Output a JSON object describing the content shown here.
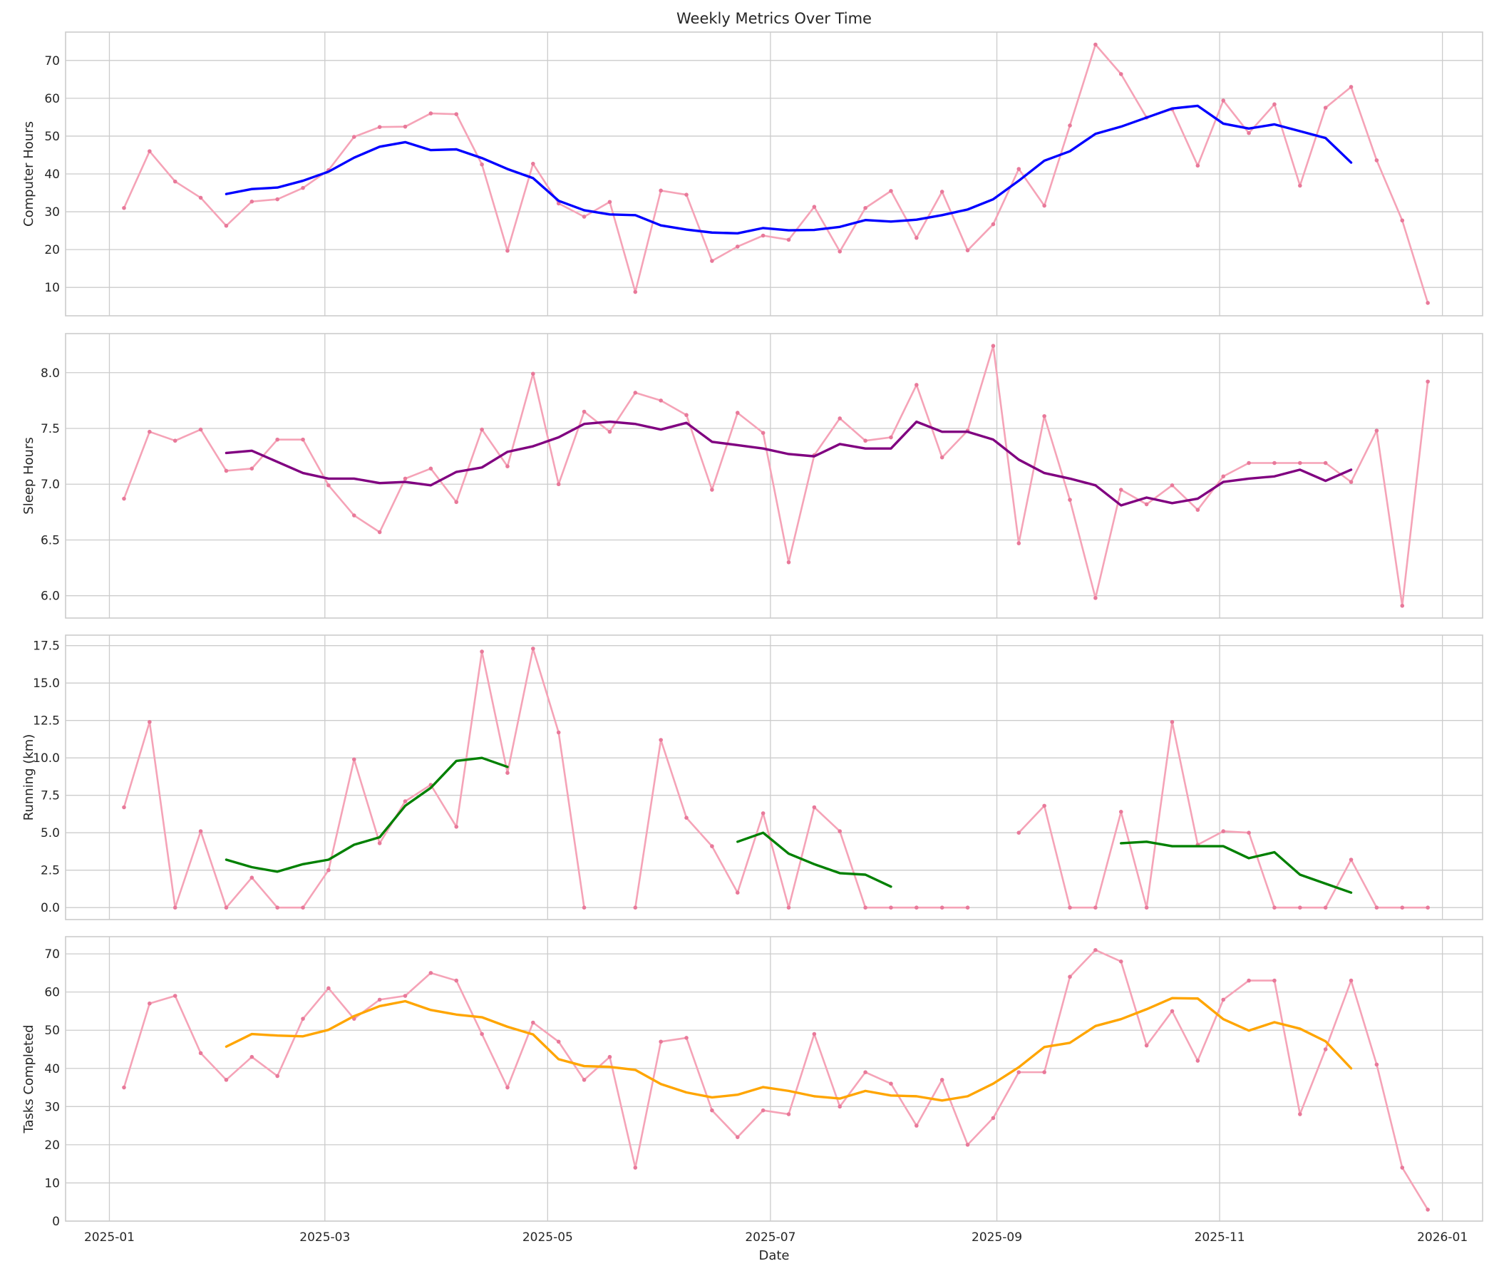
{
  "figure_title": "Weekly Metrics Over Time",
  "x_axis": {
    "label": "Date",
    "ticks": [
      {
        "date": "2025-01-01",
        "label": "2025-01"
      },
      {
        "date": "2025-03-01",
        "label": "2025-03"
      },
      {
        "date": "2025-05-01",
        "label": "2025-05"
      },
      {
        "date": "2025-07-01",
        "label": "2025-07"
      },
      {
        "date": "2025-09-01",
        "label": "2025-09"
      },
      {
        "date": "2025-11-01",
        "label": "2025-11"
      },
      {
        "date": "2026-01-01",
        "label": "2026-01"
      }
    ],
    "range": [
      "2024-12-20",
      "2026-01-12"
    ]
  },
  "colors": {
    "raw_line": "#f5a3b7",
    "raw_marker": "#e8799a",
    "grid": "#cccccc",
    "axes_edge": "#cccccc",
    "computer_avg": "#0000ff",
    "sleep_avg": "#800080",
    "running_avg": "#008000",
    "tasks_avg": "#ffa500"
  },
  "chart_data": [
    {
      "type": "line",
      "ylabel": "Computer Hours",
      "ylim": [
        2.5,
        77.5
      ],
      "yticks": [
        10,
        20,
        30,
        40,
        50,
        60,
        70
      ],
      "grid": true,
      "avg_color_key": "computer_avg",
      "raw": {
        "x": [
          "2025-01-05",
          "2025-01-12",
          "2025-01-19",
          "2025-01-26",
          "2025-02-02",
          "2025-02-09",
          "2025-02-16",
          "2025-02-23",
          "2025-03-02",
          "2025-03-09",
          "2025-03-16",
          "2025-03-23",
          "2025-03-30",
          "2025-04-06",
          "2025-04-13",
          "2025-04-20",
          "2025-04-27",
          "2025-05-04",
          "2025-05-11",
          "2025-05-18",
          "2025-05-25",
          "2025-06-01",
          "2025-06-08",
          "2025-06-15",
          "2025-06-22",
          "2025-06-29",
          "2025-07-06",
          "2025-07-13",
          "2025-07-20",
          "2025-07-27",
          "2025-08-03",
          "2025-08-10",
          "2025-08-17",
          "2025-08-24",
          "2025-08-31",
          "2025-09-07",
          "2025-09-14",
          "2025-09-21",
          "2025-09-28",
          "2025-10-05",
          "2025-10-12",
          "2025-10-19",
          "2025-10-26",
          "2025-11-02",
          "2025-11-09",
          "2025-11-16",
          "2025-11-23",
          "2025-11-30",
          "2025-12-07",
          "2025-12-14",
          "2025-12-21",
          "2025-12-28"
        ],
        "y": [
          31,
          46,
          38,
          33.7,
          26.3,
          32.7,
          33.3,
          36.3,
          41,
          49.8,
          52.4,
          52.5,
          56,
          55.8,
          42.5,
          19.7,
          42.7,
          32.2,
          28.7,
          32.6,
          8.8,
          35.6,
          34.5,
          17,
          20.8,
          23.7,
          22.6,
          31.3,
          19.5,
          31,
          35.5,
          23.1,
          35.3,
          19.8,
          26.7,
          41.3,
          31.6,
          52.8,
          74.2,
          66.4,
          54.9,
          57.1,
          42.2,
          59.4,
          50.8,
          58.4,
          36.9,
          57.5,
          63,
          43.6,
          27.7,
          5.9
        ]
      },
      "avg": {
        "x": [
          "2025-02-02",
          "2025-02-09",
          "2025-02-16",
          "2025-02-23",
          "2025-03-02",
          "2025-03-09",
          "2025-03-16",
          "2025-03-23",
          "2025-03-30",
          "2025-04-06",
          "2025-04-13",
          "2025-04-20",
          "2025-04-27",
          "2025-05-04",
          "2025-05-11",
          "2025-05-18",
          "2025-05-25",
          "2025-06-01",
          "2025-06-08",
          "2025-06-15",
          "2025-06-22",
          "2025-06-29",
          "2025-07-06",
          "2025-07-13",
          "2025-07-20",
          "2025-07-27",
          "2025-08-03",
          "2025-08-10",
          "2025-08-17",
          "2025-08-24",
          "2025-08-31",
          "2025-09-07",
          "2025-09-14",
          "2025-09-21",
          "2025-09-28",
          "2025-10-05",
          "2025-10-12",
          "2025-10-19",
          "2025-10-26",
          "2025-11-02",
          "2025-11-09",
          "2025-11-16",
          "2025-11-23",
          "2025-11-30",
          "2025-12-07"
        ],
        "y": [
          34.7,
          36,
          36.4,
          38.2,
          40.6,
          44.3,
          47.2,
          48.4,
          46.3,
          46.5,
          44.2,
          41.3,
          38.9,
          32.9,
          30.4,
          29.3,
          29.1,
          26.4,
          25.3,
          24.5,
          24.3,
          25.7,
          25.1,
          25.2,
          26,
          27.8,
          27.4,
          27.9,
          29.1,
          30.6,
          33.3,
          38.2,
          43.5,
          46,
          50.6,
          52.5,
          54.9,
          57.3,
          58,
          53.3,
          52,
          53.1,
          51.3,
          49.5,
          43
        ]
      }
    },
    {
      "type": "line",
      "ylabel": "Sleep Hours",
      "ylim": [
        5.8,
        8.35
      ],
      "yticks": [
        6.0,
        6.5,
        7.0,
        7.5,
        8.0
      ],
      "ytick_labels": [
        "6.0",
        "6.5",
        "7.0",
        "7.5",
        "8.0"
      ],
      "grid": true,
      "avg_color_key": "sleep_avg",
      "raw": {
        "x": [
          "2025-01-05",
          "2025-01-12",
          "2025-01-19",
          "2025-01-26",
          "2025-02-02",
          "2025-02-09",
          "2025-02-16",
          "2025-02-23",
          "2025-03-02",
          "2025-03-09",
          "2025-03-16",
          "2025-03-23",
          "2025-03-30",
          "2025-04-06",
          "2025-04-13",
          "2025-04-20",
          "2025-04-27",
          "2025-05-04",
          "2025-05-11",
          "2025-05-18",
          "2025-05-25",
          "2025-06-01",
          "2025-06-08",
          "2025-06-15",
          "2025-06-22",
          "2025-06-29",
          "2025-07-06",
          "2025-07-13",
          "2025-07-20",
          "2025-07-27",
          "2025-08-03",
          "2025-08-10",
          "2025-08-17",
          "2025-08-24",
          "2025-08-31",
          "2025-09-07",
          "2025-09-14",
          "2025-09-21",
          "2025-09-28",
          "2025-10-05",
          "2025-10-12",
          "2025-10-19",
          "2025-10-26",
          "2025-11-02",
          "2025-11-09",
          "2025-11-16",
          "2025-11-23",
          "2025-11-30",
          "2025-12-07",
          "2025-12-14",
          "2025-12-21",
          "2025-12-28"
        ],
        "y": [
          6.87,
          7.47,
          7.39,
          7.49,
          7.12,
          7.14,
          7.4,
          7.4,
          6.99,
          6.72,
          6.57,
          7.05,
          7.14,
          6.84,
          7.49,
          7.16,
          7.99,
          7.0,
          7.65,
          7.47,
          7.82,
          7.75,
          7.62,
          6.95,
          7.64,
          7.46,
          6.3,
          7.26,
          7.59,
          7.39,
          7.42,
          7.89,
          7.24,
          7.48,
          8.24,
          6.47,
          7.61,
          6.86,
          5.98,
          6.95,
          6.82,
          6.99,
          6.77,
          7.07,
          7.19,
          7.19,
          7.19,
          7.19,
          7.02,
          7.48,
          5.91,
          7.92
        ]
      },
      "avg": {
        "x": [
          "2025-02-02",
          "2025-02-09",
          "2025-02-16",
          "2025-02-23",
          "2025-03-02",
          "2025-03-09",
          "2025-03-16",
          "2025-03-23",
          "2025-03-30",
          "2025-04-06",
          "2025-04-13",
          "2025-04-20",
          "2025-04-27",
          "2025-05-04",
          "2025-05-11",
          "2025-05-18",
          "2025-05-25",
          "2025-06-01",
          "2025-06-08",
          "2025-06-15",
          "2025-06-22",
          "2025-06-29",
          "2025-07-06",
          "2025-07-13",
          "2025-07-20",
          "2025-07-27",
          "2025-08-03",
          "2025-08-10",
          "2025-08-17",
          "2025-08-24",
          "2025-08-31",
          "2025-09-07",
          "2025-09-14",
          "2025-09-21",
          "2025-09-28",
          "2025-10-05",
          "2025-10-12",
          "2025-10-19",
          "2025-10-26",
          "2025-11-02",
          "2025-11-09",
          "2025-11-16",
          "2025-11-23",
          "2025-11-30",
          "2025-12-07"
        ],
        "y": [
          7.28,
          7.3,
          7.2,
          7.1,
          7.05,
          7.05,
          7.01,
          7.02,
          6.99,
          7.11,
          7.15,
          7.29,
          7.34,
          7.42,
          7.54,
          7.56,
          7.54,
          7.49,
          7.55,
          7.38,
          7.35,
          7.32,
          7.27,
          7.25,
          7.36,
          7.32,
          7.32,
          7.56,
          7.47,
          7.47,
          7.4,
          7.22,
          7.1,
          7.05,
          6.99,
          6.81,
          6.88,
          6.83,
          6.87,
          7.02,
          7.05,
          7.07,
          7.13,
          7.03,
          7.13
        ]
      }
    },
    {
      "type": "line",
      "ylabel": "Running (km)",
      "ylim": [
        -0.8,
        18.2
      ],
      "yticks": [
        0,
        2.5,
        5,
        7.5,
        10,
        12.5,
        15,
        17.5
      ],
      "ytick_labels": [
        "0.0",
        "2.5",
        "5.0",
        "7.5",
        "10.0",
        "12.5",
        "15.0",
        "17.5"
      ],
      "grid": true,
      "avg_color_key": "running_avg",
      "raw": {
        "x": [
          "2025-01-05",
          "2025-01-12",
          "2025-01-19",
          "2025-01-26",
          "2025-02-02",
          "2025-02-09",
          "2025-02-16",
          "2025-02-23",
          "2025-03-02",
          "2025-03-09",
          "2025-03-16",
          "2025-03-23",
          "2025-03-30",
          "2025-04-06",
          "2025-04-13",
          "2025-04-20",
          "2025-04-27",
          "2025-05-04",
          "2025-05-11",
          "2025-05-18",
          "2025-05-25",
          "2025-06-01",
          "2025-06-08",
          "2025-06-15",
          "2025-06-22",
          "2025-06-29",
          "2025-07-06",
          "2025-07-13",
          "2025-07-20",
          "2025-07-27",
          "2025-08-03",
          "2025-08-10",
          "2025-08-17",
          "2025-08-24",
          "2025-08-31",
          "2025-09-07",
          "2025-09-14",
          "2025-09-21",
          "2025-09-28",
          "2025-10-05",
          "2025-10-12",
          "2025-10-19",
          "2025-10-26",
          "2025-11-02",
          "2025-11-09",
          "2025-11-16",
          "2025-11-23",
          "2025-11-30",
          "2025-12-07",
          "2025-12-14",
          "2025-12-21",
          "2025-12-28"
        ],
        "y": [
          6.7,
          12.4,
          0,
          5.1,
          0,
          2,
          0,
          0,
          2.5,
          9.9,
          4.3,
          7.1,
          8.2,
          5.4,
          17.1,
          9,
          17.3,
          11.7,
          0,
          null,
          0,
          11.2,
          6,
          4.1,
          1,
          6.3,
          0,
          6.7,
          5.1,
          0,
          0,
          0,
          0,
          0,
          null,
          5,
          6.8,
          0,
          0,
          6.4,
          0,
          12.4,
          4.2,
          5.1,
          5,
          0,
          0,
          0,
          3.2,
          0,
          0,
          0
        ]
      },
      "avg": {
        "x": [
          "2025-02-02",
          "2025-02-09",
          "2025-02-16",
          "2025-02-23",
          "2025-03-02",
          "2025-03-09",
          "2025-03-16",
          "2025-03-23",
          "2025-03-30",
          "2025-04-06",
          "2025-04-13",
          "2025-04-20",
          "2025-04-27",
          "2025-05-04",
          "2025-05-11",
          "2025-05-18",
          "2025-05-25",
          "2025-06-01",
          "2025-06-08",
          "2025-06-15",
          "2025-06-22",
          "2025-06-29",
          "2025-07-06",
          "2025-07-13",
          "2025-07-20",
          "2025-07-27",
          "2025-08-03",
          "2025-08-10",
          "2025-08-17",
          "2025-08-24",
          "2025-08-31",
          "2025-09-07",
          "2025-09-14",
          "2025-09-21",
          "2025-09-28",
          "2025-10-05",
          "2025-10-12",
          "2025-10-19",
          "2025-10-26",
          "2025-11-02",
          "2025-11-09",
          "2025-11-16",
          "2025-11-23",
          "2025-11-30",
          "2025-12-07"
        ],
        "y": [
          3.2,
          2.7,
          2.4,
          2.9,
          3.2,
          4.2,
          4.7,
          6.8,
          8,
          9.8,
          10,
          9.4,
          null,
          null,
          null,
          null,
          null,
          null,
          null,
          null,
          4.4,
          5,
          3.6,
          2.9,
          2.3,
          2.2,
          1.4,
          null,
          null,
          null,
          null,
          null,
          null,
          null,
          null,
          4.3,
          4.4,
          4.1,
          4.1,
          4.1,
          3.3,
          3.7,
          2.2,
          1.6,
          1
        ]
      }
    },
    {
      "type": "line",
      "ylabel": "Tasks Completed",
      "ylim": [
        0,
        74.5
      ],
      "yticks": [
        0,
        10,
        20,
        30,
        40,
        50,
        60,
        70
      ],
      "grid": true,
      "avg_color_key": "tasks_avg",
      "raw": {
        "x": [
          "2025-01-05",
          "2025-01-12",
          "2025-01-19",
          "2025-01-26",
          "2025-02-02",
          "2025-02-09",
          "2025-02-16",
          "2025-02-23",
          "2025-03-02",
          "2025-03-09",
          "2025-03-16",
          "2025-03-23",
          "2025-03-30",
          "2025-04-06",
          "2025-04-13",
          "2025-04-20",
          "2025-04-27",
          "2025-05-04",
          "2025-05-11",
          "2025-05-18",
          "2025-05-25",
          "2025-06-01",
          "2025-06-08",
          "2025-06-15",
          "2025-06-22",
          "2025-06-29",
          "2025-07-06",
          "2025-07-13",
          "2025-07-20",
          "2025-07-27",
          "2025-08-03",
          "2025-08-10",
          "2025-08-17",
          "2025-08-24",
          "2025-08-31",
          "2025-09-07",
          "2025-09-14",
          "2025-09-21",
          "2025-09-28",
          "2025-10-05",
          "2025-10-12",
          "2025-10-19",
          "2025-10-26",
          "2025-11-02",
          "2025-11-09",
          "2025-11-16",
          "2025-11-23",
          "2025-11-30",
          "2025-12-07",
          "2025-12-14",
          "2025-12-21",
          "2025-12-28"
        ],
        "y": [
          35,
          57,
          59,
          44,
          37,
          43,
          38,
          53,
          61,
          53,
          58,
          59,
          65,
          63,
          49,
          35,
          52,
          47,
          37,
          43,
          14,
          47,
          48,
          29,
          22,
          29,
          28,
          49,
          30,
          39,
          36,
          25,
          37,
          20,
          27,
          39,
          39,
          64,
          71,
          68,
          46,
          55,
          42,
          58,
          63,
          63,
          28,
          45,
          63,
          41,
          14,
          3
        ]
      },
      "avg": {
        "x": [
          "2025-02-02",
          "2025-02-09",
          "2025-02-16",
          "2025-02-23",
          "2025-03-02",
          "2025-03-09",
          "2025-03-16",
          "2025-03-23",
          "2025-03-30",
          "2025-04-06",
          "2025-04-13",
          "2025-04-20",
          "2025-04-27",
          "2025-05-04",
          "2025-05-11",
          "2025-05-18",
          "2025-05-25",
          "2025-06-01",
          "2025-06-08",
          "2025-06-15",
          "2025-06-22",
          "2025-06-29",
          "2025-07-06",
          "2025-07-13",
          "2025-07-20",
          "2025-07-27",
          "2025-08-03",
          "2025-08-10",
          "2025-08-17",
          "2025-08-24",
          "2025-08-31",
          "2025-09-07",
          "2025-09-14",
          "2025-09-21",
          "2025-09-28",
          "2025-10-05",
          "2025-10-12",
          "2025-10-19",
          "2025-10-26",
          "2025-11-02",
          "2025-11-09",
          "2025-11-16",
          "2025-11-23",
          "2025-11-30",
          "2025-12-07"
        ],
        "y": [
          45.7,
          49,
          48.6,
          48.4,
          50.1,
          53.7,
          56.3,
          57.6,
          55.3,
          54.1,
          53.4,
          50.9,
          48.9,
          42.4,
          40.6,
          40.4,
          39.6,
          35.9,
          33.7,
          32.4,
          33.1,
          35.1,
          34.1,
          32.7,
          32.1,
          34.1,
          32.9,
          32.7,
          31.6,
          32.7,
          36,
          40.3,
          45.6,
          46.7,
          51.1,
          52.9,
          55.5,
          58.4,
          58.3,
          52.9,
          49.9,
          52.1,
          50.4,
          47.1,
          40
        ]
      }
    }
  ]
}
